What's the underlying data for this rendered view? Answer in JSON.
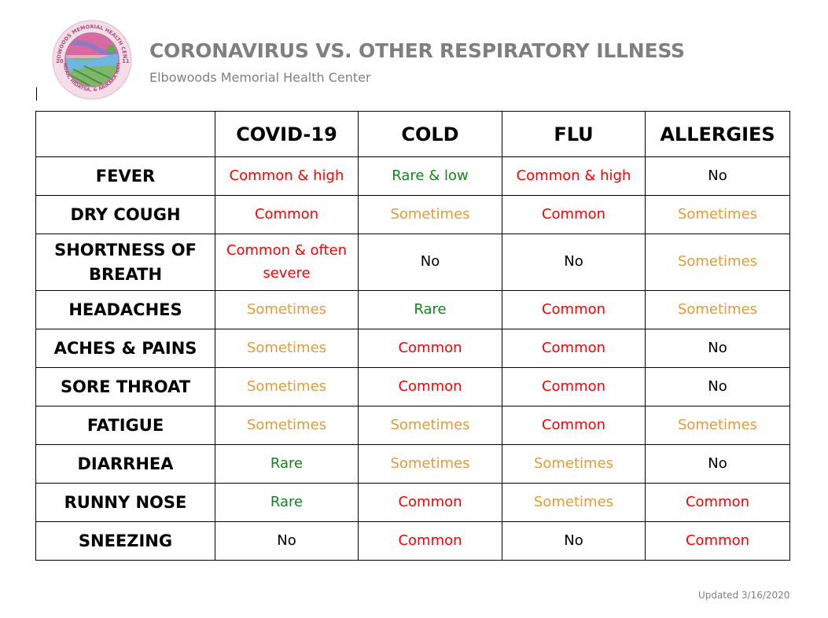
{
  "header": {
    "title": "CORONAVIRUS VS. OTHER RESPIRATORY ILLNESS",
    "subtitle": "Elbowoods Memorial Health Center",
    "logo_text": "ELBOWOODS MEMORIAL HEALTH CENTER · MANDAN, HIDATSA, & ARIKARA NATION · 2011"
  },
  "colors": {
    "common": "#ff0000",
    "sometimes": "#e59a3b",
    "rare": "#11861a",
    "no": "#000000",
    "header_gray": "#7f7f7f"
  },
  "table": {
    "columns": [
      "",
      "COVID-19",
      "COLD",
      "FLU",
      "ALLERGIES"
    ],
    "rows": [
      {
        "symptom": "FEVER",
        "cells": [
          {
            "text": "Common & high",
            "level": "common"
          },
          {
            "text": "Rare & low",
            "level": "rare"
          },
          {
            "text": "Common & high",
            "level": "common"
          },
          {
            "text": "No",
            "level": "no"
          }
        ]
      },
      {
        "symptom": "DRY COUGH",
        "cells": [
          {
            "text": "Common",
            "level": "common"
          },
          {
            "text": "Sometimes",
            "level": "sometimes"
          },
          {
            "text": "Common",
            "level": "common"
          },
          {
            "text": "Sometimes",
            "level": "sometimes"
          }
        ]
      },
      {
        "symptom": "SHORTNESS OF BREATH",
        "cells": [
          {
            "text": "Common & often severe",
            "level": "common"
          },
          {
            "text": "No",
            "level": "no"
          },
          {
            "text": "No",
            "level": "no"
          },
          {
            "text": "Sometimes",
            "level": "sometimes"
          }
        ]
      },
      {
        "symptom": "HEADACHES",
        "cells": [
          {
            "text": "Sometimes",
            "level": "sometimes"
          },
          {
            "text": "Rare",
            "level": "rare"
          },
          {
            "text": "Common",
            "level": "common"
          },
          {
            "text": "Sometimes",
            "level": "sometimes"
          }
        ]
      },
      {
        "symptom": "ACHES & PAINS",
        "cells": [
          {
            "text": "Sometimes",
            "level": "sometimes"
          },
          {
            "text": "Common",
            "level": "common"
          },
          {
            "text": "Common",
            "level": "common"
          },
          {
            "text": "No",
            "level": "no"
          }
        ]
      },
      {
        "symptom": "SORE THROAT",
        "cells": [
          {
            "text": "Sometimes",
            "level": "sometimes"
          },
          {
            "text": "Common",
            "level": "common"
          },
          {
            "text": "Common",
            "level": "common"
          },
          {
            "text": "No",
            "level": "no"
          }
        ]
      },
      {
        "symptom": "FATIGUE",
        "cells": [
          {
            "text": "Sometimes",
            "level": "sometimes"
          },
          {
            "text": "Sometimes",
            "level": "sometimes"
          },
          {
            "text": "Common",
            "level": "common"
          },
          {
            "text": "Sometimes",
            "level": "sometimes"
          }
        ]
      },
      {
        "symptom": "DIARRHEA",
        "cells": [
          {
            "text": "Rare",
            "level": "rare"
          },
          {
            "text": "Sometimes",
            "level": "sometimes"
          },
          {
            "text": "Sometimes",
            "level": "sometimes"
          },
          {
            "text": "No",
            "level": "no"
          }
        ]
      },
      {
        "symptom": "RUNNY NOSE",
        "cells": [
          {
            "text": "Rare",
            "level": "rare"
          },
          {
            "text": "Common",
            "level": "common"
          },
          {
            "text": "Sometimes",
            "level": "sometimes"
          },
          {
            "text": "Common",
            "level": "common"
          }
        ]
      },
      {
        "symptom": "SNEEZING",
        "cells": [
          {
            "text": "No",
            "level": "no"
          },
          {
            "text": "Common",
            "level": "common"
          },
          {
            "text": "No",
            "level": "no"
          },
          {
            "text": "Common",
            "level": "common"
          }
        ]
      }
    ]
  },
  "footer": {
    "updated": "Updated 3/16/2020"
  }
}
